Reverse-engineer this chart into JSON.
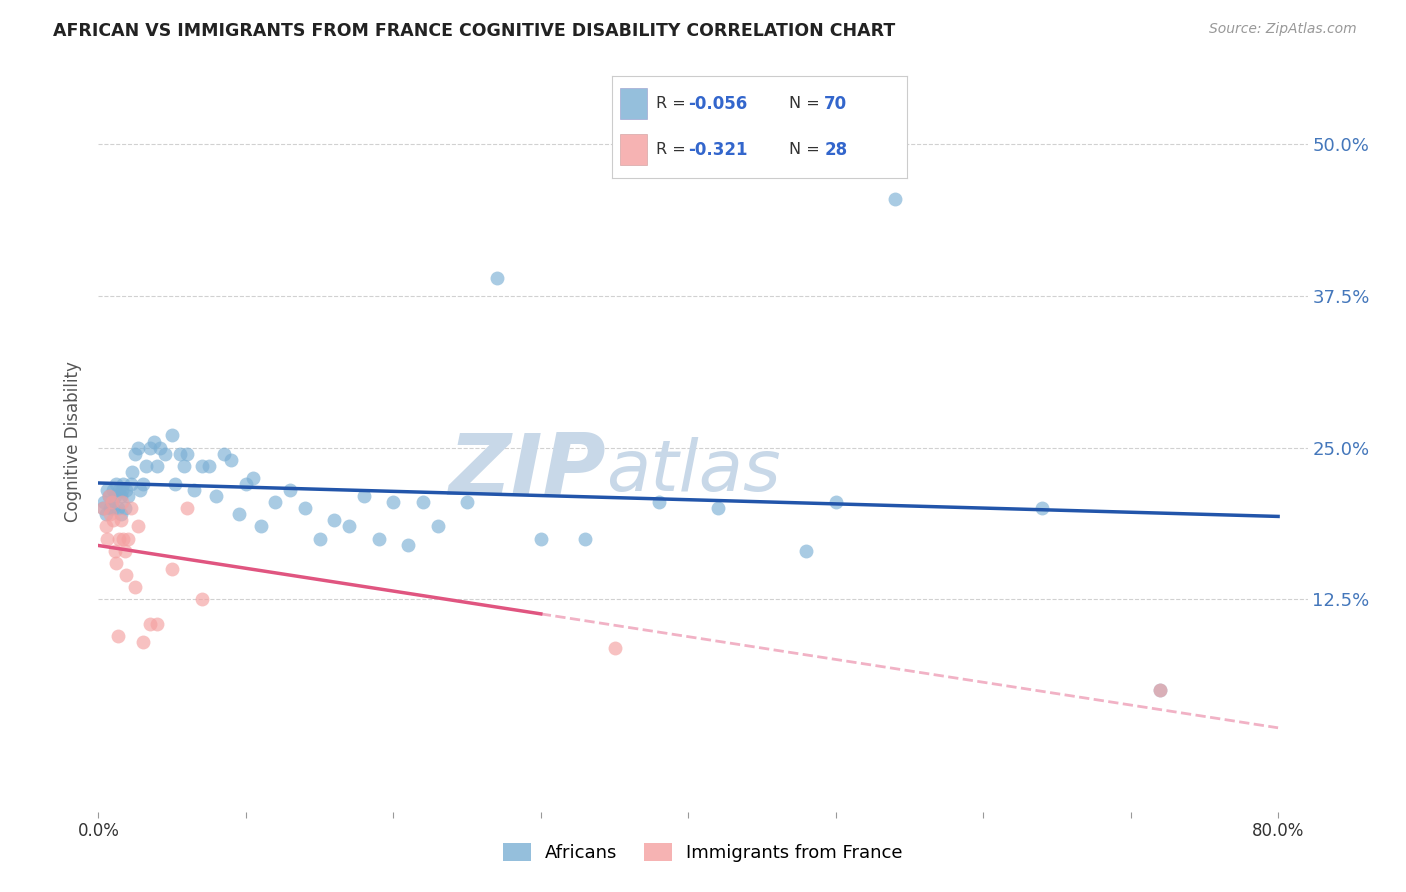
{
  "title": "AFRICAN VS IMMIGRANTS FROM FRANCE COGNITIVE DISABILITY CORRELATION CHART",
  "source": "Source: ZipAtlas.com",
  "ylabel": "Cognitive Disability",
  "ytick_labels": [
    "12.5%",
    "25.0%",
    "37.5%",
    "50.0%"
  ],
  "ytick_values": [
    0.125,
    0.25,
    0.375,
    0.5
  ],
  "xlim": [
    0.0,
    0.82
  ],
  "ylim": [
    -0.05,
    0.56
  ],
  "blue_color": "#7BAFD4",
  "pink_color": "#F4A0A0",
  "line_blue": "#2255AA",
  "line_pink": "#E05580",
  "watermark": "ZIPatlas",
  "watermark_color": "#C8D8E8",
  "africans_x": [
    0.003,
    0.004,
    0.005,
    0.006,
    0.007,
    0.008,
    0.009,
    0.01,
    0.01,
    0.011,
    0.012,
    0.013,
    0.014,
    0.015,
    0.015,
    0.016,
    0.017,
    0.018,
    0.019,
    0.02,
    0.022,
    0.023,
    0.025,
    0.027,
    0.028,
    0.03,
    0.032,
    0.035,
    0.038,
    0.04,
    0.042,
    0.045,
    0.05,
    0.052,
    0.055,
    0.058,
    0.06,
    0.065,
    0.07,
    0.075,
    0.08,
    0.085,
    0.09,
    0.095,
    0.1,
    0.105,
    0.11,
    0.12,
    0.13,
    0.14,
    0.15,
    0.16,
    0.17,
    0.18,
    0.19,
    0.2,
    0.21,
    0.22,
    0.23,
    0.25,
    0.27,
    0.3,
    0.33,
    0.38,
    0.42,
    0.48,
    0.5,
    0.54,
    0.64,
    0.72
  ],
  "africans_y": [
    0.2,
    0.205,
    0.195,
    0.215,
    0.21,
    0.2,
    0.205,
    0.215,
    0.2,
    0.21,
    0.22,
    0.2,
    0.215,
    0.21,
    0.195,
    0.215,
    0.22,
    0.2,
    0.215,
    0.21,
    0.22,
    0.23,
    0.245,
    0.25,
    0.215,
    0.22,
    0.235,
    0.25,
    0.255,
    0.235,
    0.25,
    0.245,
    0.26,
    0.22,
    0.245,
    0.235,
    0.245,
    0.215,
    0.235,
    0.235,
    0.21,
    0.245,
    0.24,
    0.195,
    0.22,
    0.225,
    0.185,
    0.205,
    0.215,
    0.2,
    0.175,
    0.19,
    0.185,
    0.21,
    0.175,
    0.205,
    0.17,
    0.205,
    0.185,
    0.205,
    0.39,
    0.175,
    0.175,
    0.205,
    0.2,
    0.165,
    0.205,
    0.455,
    0.2,
    0.05
  ],
  "france_x": [
    0.003,
    0.005,
    0.006,
    0.007,
    0.008,
    0.009,
    0.01,
    0.011,
    0.012,
    0.013,
    0.014,
    0.015,
    0.016,
    0.017,
    0.018,
    0.019,
    0.02,
    0.022,
    0.025,
    0.027,
    0.03,
    0.035,
    0.04,
    0.05,
    0.06,
    0.07,
    0.35,
    0.72
  ],
  "france_y": [
    0.2,
    0.185,
    0.175,
    0.21,
    0.195,
    0.205,
    0.19,
    0.165,
    0.155,
    0.095,
    0.175,
    0.19,
    0.205,
    0.175,
    0.165,
    0.145,
    0.175,
    0.2,
    0.135,
    0.185,
    0.09,
    0.105,
    0.105,
    0.15,
    0.2,
    0.125,
    0.085,
    0.05
  ]
}
